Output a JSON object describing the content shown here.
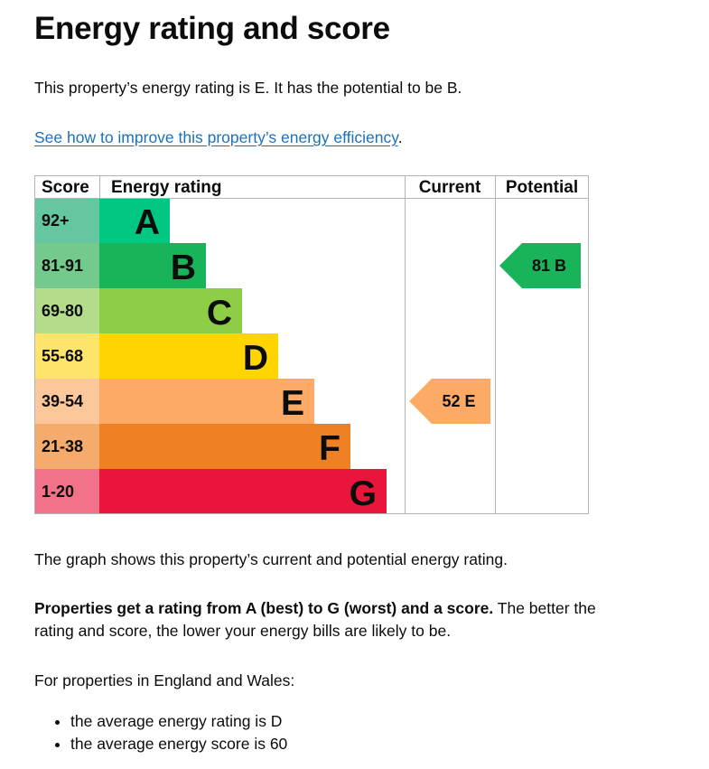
{
  "page": {
    "title": "Energy rating and score",
    "rating_sentence": "This property’s energy rating is E. It has the potential to be B.",
    "improve_link": "See how to improve this property’s energy efficiency",
    "improve_link_suffix": ".",
    "graph_caption": "The graph shows this property’s current and potential energy rating.",
    "properties_bold": "Properties get a rating from A (best) to G (worst) and a score.",
    "properties_rest": " The better the rating and score, the lower your energy bills are likely to be.",
    "england_wales": "For properties in England and Wales:",
    "averages": [
      "the average energy rating is D",
      "the average energy score is 60"
    ]
  },
  "chart_data": {
    "type": "table",
    "headers": {
      "score": "Score",
      "rating": "Energy rating",
      "current": "Current",
      "potential": "Potential"
    },
    "bands": [
      {
        "letter": "A",
        "range": "92+",
        "color": "#00c781",
        "light": "#65c7a0"
      },
      {
        "letter": "B",
        "range": "81-91",
        "color": "#19b459",
        "light": "#74c98d"
      },
      {
        "letter": "C",
        "range": "69-80",
        "color": "#8dce46",
        "light": "#b4dd8a"
      },
      {
        "letter": "D",
        "range": "55-68",
        "color": "#ffd500",
        "light": "#fee46a"
      },
      {
        "letter": "E",
        "range": "39-54",
        "color": "#fcaa65",
        "light": "#fcc79a"
      },
      {
        "letter": "F",
        "range": "21-38",
        "color": "#ef8023",
        "light": "#f5ab6b"
      },
      {
        "letter": "G",
        "range": "1-20",
        "color": "#e9153b",
        "light": "#f27389"
      }
    ],
    "current": {
      "score": 52,
      "band": "E",
      "label": "52  E"
    },
    "potential": {
      "score": 81,
      "band": "B",
      "label": "81  B"
    }
  }
}
